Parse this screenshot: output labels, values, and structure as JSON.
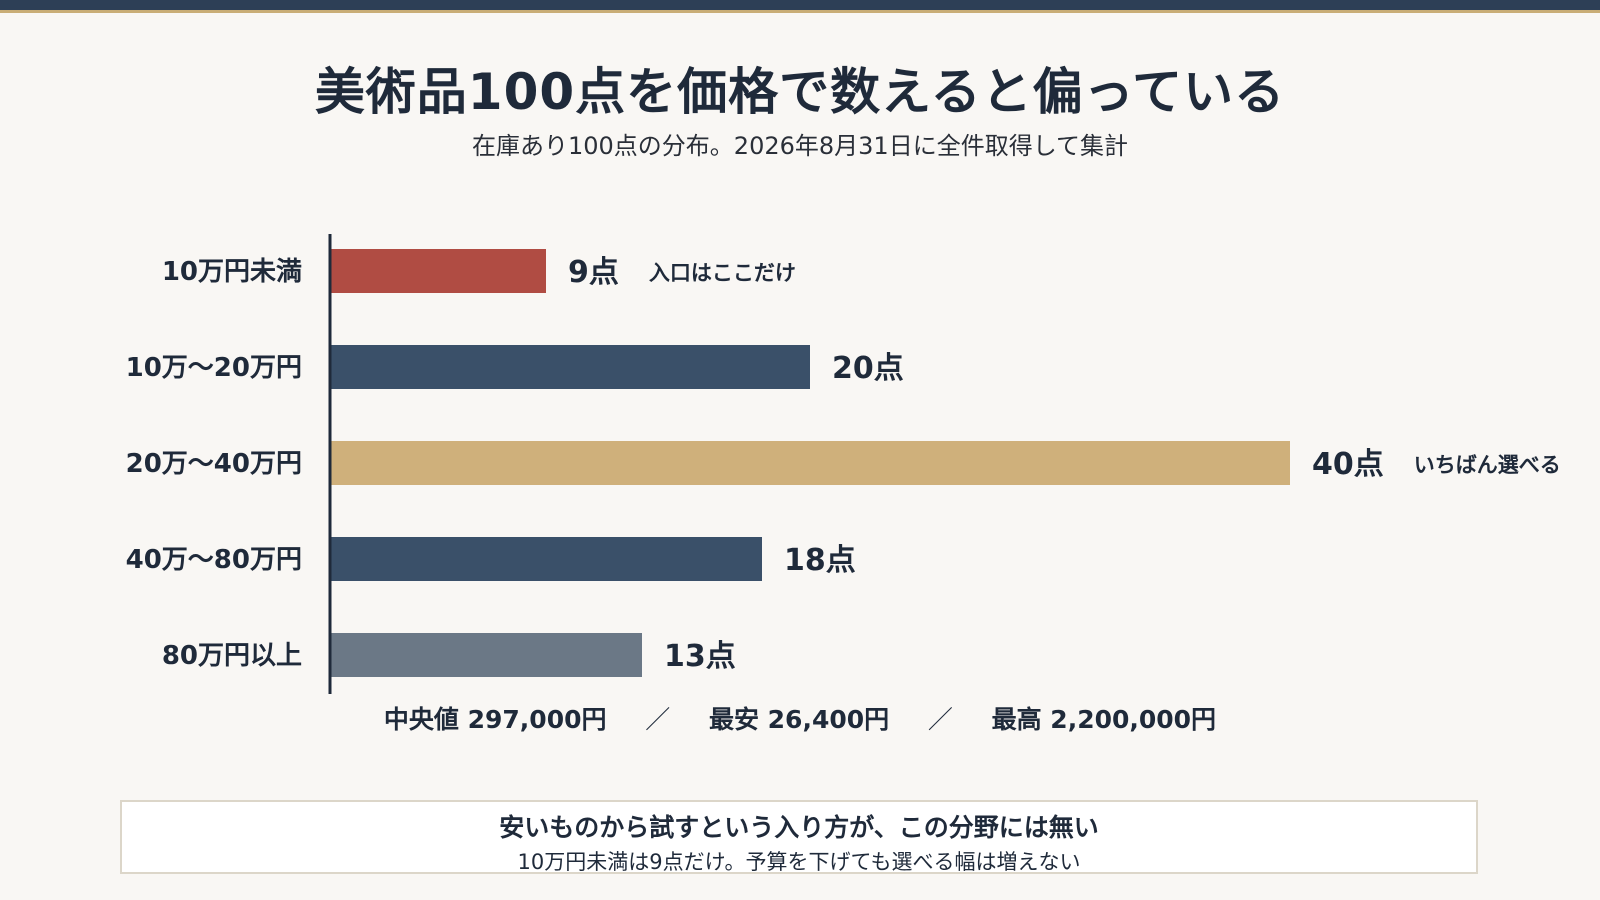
{
  "header": {
    "title": "美術品100点を価格で数えると偏っている",
    "subtitle": "在庫あり100点の分布。2026年8月31日に全件取得して集計"
  },
  "chart_data": {
    "type": "bar",
    "orientation": "horizontal",
    "categories": [
      "10万円未満",
      "10万〜20万円",
      "20万〜40万円",
      "40万〜80万円",
      "80万円以上"
    ],
    "values": [
      9,
      20,
      40,
      18,
      13
    ],
    "value_labels": [
      "9点",
      "20点",
      "40点",
      "18点",
      "13点"
    ],
    "annotations": [
      "入口はここだけ",
      "",
      "いちばん選べる",
      "",
      ""
    ],
    "colors": [
      "#b04c43",
      "#3a5069",
      "#cfb07b",
      "#3a5069",
      "#6b7886"
    ],
    "xlim": [
      0,
      40
    ],
    "grid": false
  },
  "stats": {
    "median": "中央値 297,000円",
    "min": "最安 26,400円",
    "max": "最高 2,200,000円",
    "separator": "／"
  },
  "callout": {
    "headline": "安いものから試すという入り方が、この分野には無い",
    "body": "10万円未満は9点だけ。予算を下げても選べる幅は増えない"
  }
}
